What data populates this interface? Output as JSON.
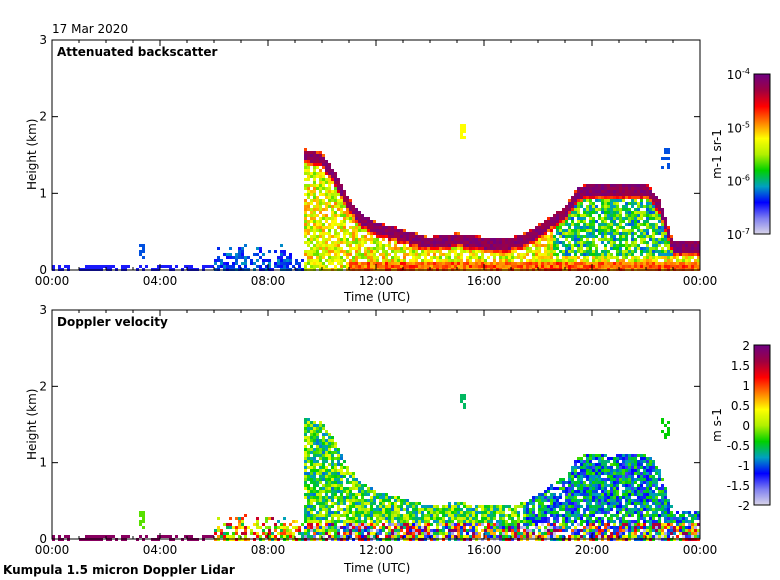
{
  "date_label": "17 Mar 2020",
  "footer": "Kumpula 1.5 micron Doppler Lidar",
  "chart_data": [
    {
      "type": "heatmap",
      "title": "Attenuated backscatter",
      "xlabel": "Time (UTC)",
      "ylabel": "Height (km)",
      "xticks": [
        "00:00",
        "04:00",
        "08:00",
        "12:00",
        "16:00",
        "20:00",
        "00:00"
      ],
      "yticks": [
        "0",
        "1",
        "2",
        "3"
      ],
      "xlim_hours": [
        0,
        24
      ],
      "ylim_km": [
        0,
        3
      ],
      "colorbar": {
        "label": "m-1 sr-1",
        "scale": "log",
        "range": [
          1e-07,
          0.0001
        ],
        "ticks": [
          "10-7",
          "10-6",
          "10-5",
          "10-4"
        ]
      },
      "layer_top_km": {
        "hours": [
          9.3,
          10,
          10.5,
          11,
          11.5,
          12,
          13,
          14,
          15,
          16,
          17,
          17.5,
          18,
          19,
          19.5,
          20,
          21,
          22,
          22.5,
          23,
          24
        ],
        "km": [
          1.5,
          1.45,
          1.2,
          0.85,
          0.65,
          0.55,
          0.45,
          0.35,
          0.4,
          0.35,
          0.35,
          0.4,
          0.5,
          0.75,
          1.0,
          1.05,
          1.05,
          1.05,
          0.85,
          0.3,
          0.3
        ]
      }
    },
    {
      "type": "heatmap",
      "title": "Doppler velocity",
      "xlabel": "Time (UTC)",
      "ylabel": "Height (km)",
      "xticks": [
        "00:00",
        "04:00",
        "08:00",
        "12:00",
        "16:00",
        "20:00",
        "00:00"
      ],
      "yticks": [
        "0",
        "1",
        "2",
        "3"
      ],
      "xlim_hours": [
        0,
        24
      ],
      "ylim_km": [
        0,
        3
      ],
      "colorbar": {
        "label": "m s-1",
        "scale": "linear",
        "range": [
          -2,
          2
        ],
        "ticks": [
          "2",
          "1.5",
          "1",
          "0.5",
          "0",
          "-0.5",
          "-1",
          "-1.5",
          "-2"
        ]
      }
    }
  ],
  "colors": {
    "colormap": [
      "#dcd8e8",
      "#8080f0",
      "#0000ff",
      "#00a0c0",
      "#00d000",
      "#b0f000",
      "#ffff00",
      "#ff8000",
      "#ff0000",
      "#a00040",
      "#700080"
    ]
  }
}
